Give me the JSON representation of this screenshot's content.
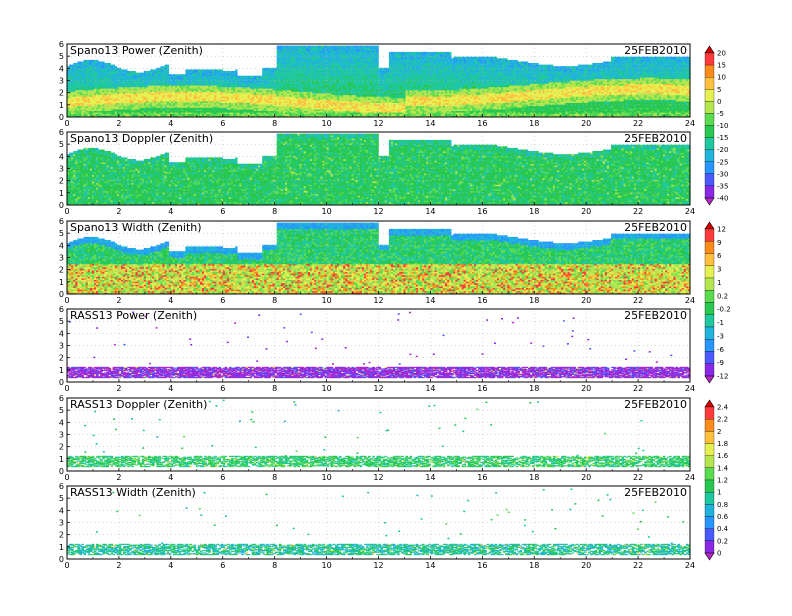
{
  "chart_data": [
    {
      "type": "heatmap",
      "title": "Spano13 Power (Zenith)",
      "date": "25FEB2010",
      "x_ticks": [
        "0",
        "2",
        "4",
        "6",
        "8",
        "10",
        "12",
        "14",
        "16",
        "18",
        "20",
        "22",
        "24"
      ],
      "y_ticks": [
        "0",
        "1",
        "2",
        "3",
        "4",
        "5",
        "6"
      ],
      "xlim": [
        0,
        24
      ],
      "ylim": [
        0,
        6
      ],
      "field": "power"
    },
    {
      "type": "heatmap",
      "title": "Spano13 Doppler (Zenith)",
      "date": "25FEB2010",
      "x_ticks": [
        "0",
        "2",
        "4",
        "6",
        "8",
        "10",
        "12",
        "14",
        "16",
        "18",
        "20",
        "22",
        "24"
      ],
      "y_ticks": [
        "0",
        "1",
        "2",
        "3",
        "4",
        "5",
        "6"
      ],
      "xlim": [
        0,
        24
      ],
      "ylim": [
        0,
        6
      ],
      "field": "doppler"
    },
    {
      "type": "heatmap",
      "title": "Spano13 Width (Zenith)",
      "date": "25FEB2010",
      "x_ticks": [
        "0",
        "2",
        "4",
        "6",
        "8",
        "10",
        "12",
        "14",
        "16",
        "18",
        "20",
        "22",
        "24"
      ],
      "y_ticks": [
        "0",
        "1",
        "2",
        "3",
        "4",
        "5",
        "6"
      ],
      "xlim": [
        0,
        24
      ],
      "ylim": [
        0,
        6
      ],
      "field": "width"
    },
    {
      "type": "heatmap",
      "title": "RASS13 Power (Zenith)",
      "date": "25FEB2010",
      "x_ticks": [
        "0",
        "2",
        "4",
        "6",
        "8",
        "10",
        "12",
        "14",
        "16",
        "18",
        "20",
        "22",
        "24"
      ],
      "y_ticks": [
        "0",
        "1",
        "2",
        "3",
        "4",
        "5",
        "6"
      ],
      "xlim": [
        0,
        24
      ],
      "ylim": [
        0,
        6
      ],
      "field": "rass_power"
    },
    {
      "type": "heatmap",
      "title": "RASS13 Doppler (Zenith)",
      "date": "25FEB2010",
      "x_ticks": [
        "0",
        "2",
        "4",
        "6",
        "8",
        "10",
        "12",
        "14",
        "16",
        "18",
        "20",
        "22",
        "24"
      ],
      "y_ticks": [
        "0",
        "1",
        "2",
        "3",
        "4",
        "5",
        "6"
      ],
      "xlim": [
        0,
        24
      ],
      "ylim": [
        0,
        6
      ],
      "field": "rass_doppler"
    },
    {
      "type": "heatmap",
      "title": "RASS13 Width (Zenith)",
      "date": "25FEB2010",
      "x_ticks": [
        "0",
        "2",
        "4",
        "6",
        "8",
        "10",
        "12",
        "14",
        "16",
        "18",
        "20",
        "22",
        "24"
      ],
      "y_ticks": [
        "0",
        "1",
        "2",
        "3",
        "4",
        "5",
        "6"
      ],
      "xlim": [
        0,
        24
      ],
      "ylim": [
        0,
        6
      ],
      "field": "rass_width"
    }
  ],
  "colorbars": [
    {
      "labels": [
        "20",
        "15",
        "10",
        "5",
        "0",
        "-5",
        "-10",
        "-15",
        "-20",
        "-25",
        "-30",
        "-35",
        "-40"
      ],
      "colors": [
        "#d40000",
        "#ff3b3b",
        "#ff8c1a",
        "#ffc040",
        "#e6f050",
        "#b4e650",
        "#5adc50",
        "#28c850",
        "#20c8a0",
        "#20b4dc",
        "#2896ff",
        "#4a5aff",
        "#8a28e6",
        "#b428c8"
      ]
    },
    {
      "labels": [
        "12",
        "9",
        "6",
        "3",
        "1",
        "0.2",
        "-0.2",
        "-1",
        "-3",
        "-6",
        "-9",
        "-12"
      ],
      "colors": [
        "#d40000",
        "#ff3b3b",
        "#ff8c1a",
        "#ffc040",
        "#e6f050",
        "#b4e650",
        "#5adc50",
        "#28c850",
        "#20c8a0",
        "#20b4dc",
        "#2896ff",
        "#4a5aff",
        "#8a28e6",
        "#b428c8"
      ]
    },
    {
      "labels": [
        "2.4",
        "2.2",
        "2",
        "1.8",
        "1.6",
        "1.4",
        "1.2",
        "1",
        "0.8",
        "0.6",
        "0.4",
        "0.2",
        "0"
      ],
      "colors": [
        "#d40000",
        "#ff3b3b",
        "#ff8c1a",
        "#ffc040",
        "#e6f050",
        "#b4e650",
        "#5adc50",
        "#28c850",
        "#20c8a0",
        "#20b4dc",
        "#2896ff",
        "#4a5aff",
        "#8a28e6",
        "#b428c8"
      ]
    }
  ]
}
